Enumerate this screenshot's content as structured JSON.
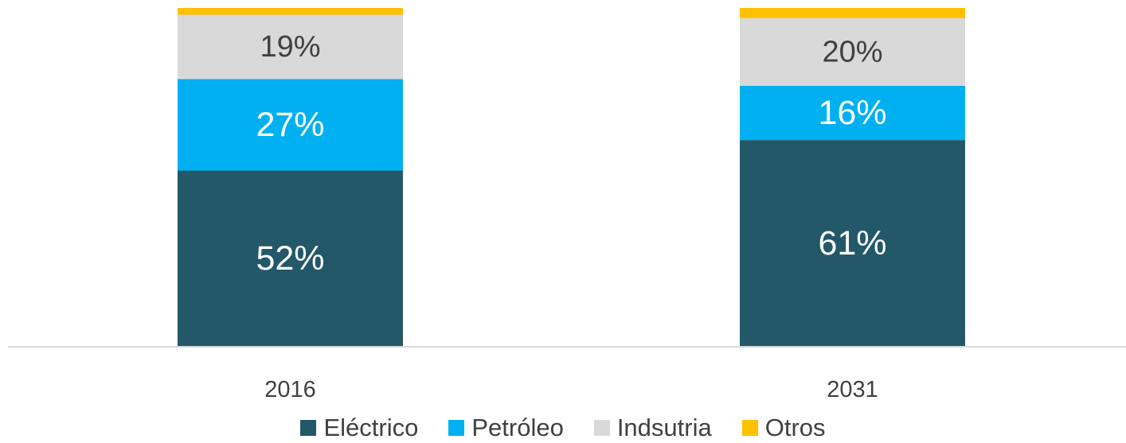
{
  "chart_data": {
    "type": "bar",
    "stacked": true,
    "categories": [
      "2016",
      "2031"
    ],
    "series": [
      {
        "name": "Eléctrico",
        "color": "#235868",
        "values": [
          52,
          61
        ],
        "labels": [
          "52%",
          "61%"
        ]
      },
      {
        "name": "Petróleo",
        "color": "#00B0F0",
        "values": [
          27,
          16
        ],
        "labels": [
          "27%",
          "16%"
        ]
      },
      {
        "name": "Indsutria",
        "color": "#D9D9D9",
        "values": [
          19,
          20
        ],
        "labels": [
          "19%",
          "20%"
        ]
      },
      {
        "name": "Otros",
        "color": "#FFC000",
        "values": [
          2,
          3
        ],
        "labels": [
          "",
          ""
        ]
      }
    ],
    "ylim": [
      0,
      100
    ],
    "title": "",
    "xlabel": "",
    "ylabel": "",
    "grid": false,
    "legend_position": "bottom"
  }
}
